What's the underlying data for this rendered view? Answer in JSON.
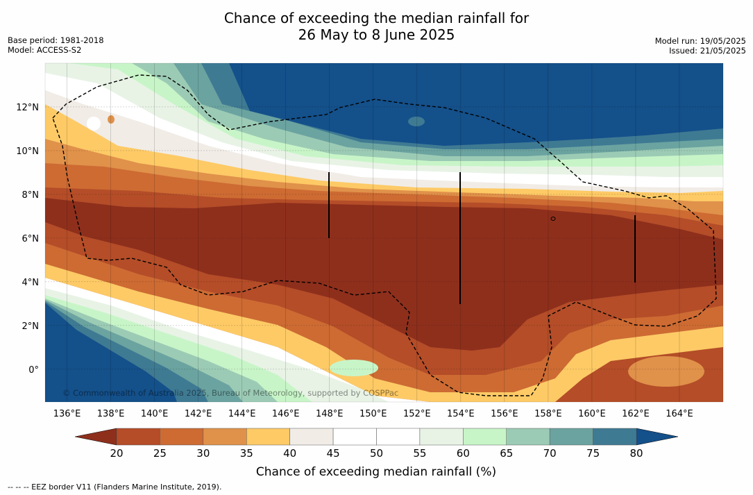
{
  "title": {
    "line1": "Chance of exceeding the median rainfall for",
    "line2": "26 May to 8 June 2025"
  },
  "meta": {
    "base_period": "Base period: 1981-2018",
    "model": "Model: ACCESS-S2",
    "model_run": "Model run: 19/05/2025",
    "issued": "Issued: 21/05/2025"
  },
  "map": {
    "lon_range": [
      135,
      166
    ],
    "lat_range": [
      -1.5,
      14
    ],
    "lon_ticks": [
      "136°E",
      "138°E",
      "140°E",
      "142°E",
      "144°E",
      "146°E",
      "148°E",
      "150°E",
      "152°E",
      "154°E",
      "156°E",
      "158°E",
      "160°E",
      "162°E",
      "164°E"
    ],
    "lat_ticks": [
      "12°N",
      "10°N",
      "8°N",
      "6°N",
      "4°N",
      "2°N",
      "0°"
    ],
    "credit": "© Commonwealth of Australia 2025, Bureau of Meteorology, supported by COSPPac"
  },
  "colorbar": {
    "ticks": [
      "20",
      "25",
      "30",
      "35",
      "40",
      "45",
      "50",
      "55",
      "60",
      "65",
      "70",
      "75",
      "80"
    ],
    "colors": [
      "#8e2f1c",
      "#b44d28",
      "#cd6b33",
      "#e0914a",
      "#fdca66",
      "#f1ece6",
      "#ffffff",
      "#ffffff",
      "#e8f3e6",
      "#c8f5c8",
      "#9ccbb5",
      "#6ba3a0",
      "#3f7a93",
      "#14508a"
    ],
    "title": "Chance of exceeding median rainfall (%)"
  },
  "footnote": "--  --  -- EEZ border V11 (Flanders Marine Institute, 2019)."
}
